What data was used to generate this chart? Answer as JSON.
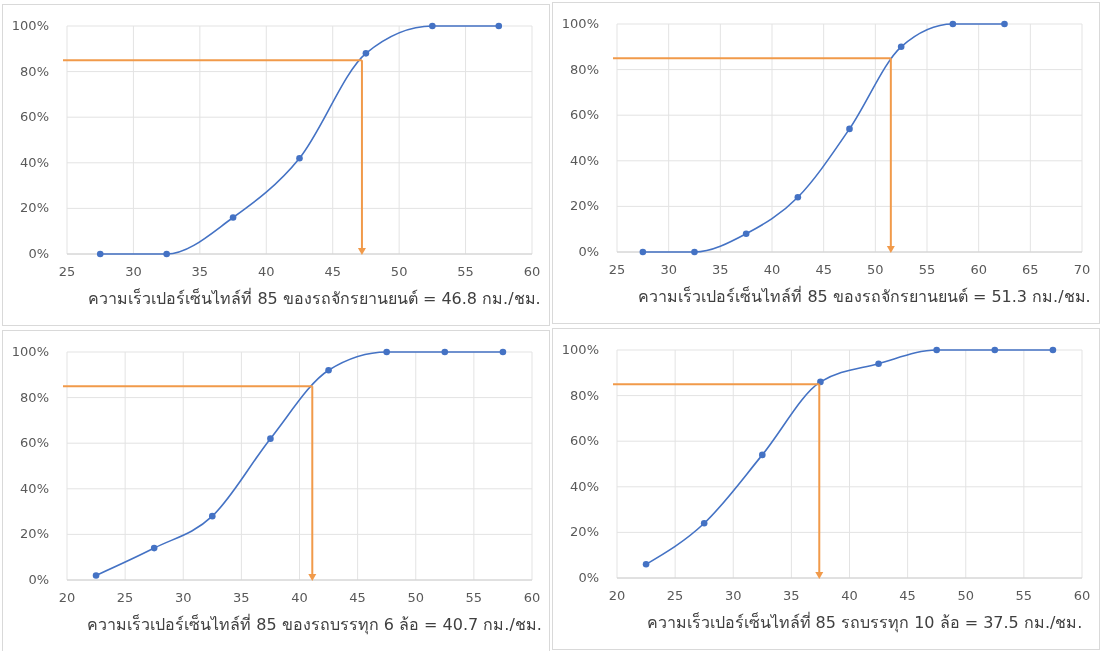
{
  "chart_data": [
    {
      "type": "line",
      "xlabel": "ความเร็วเปอร์เซ็นไทล์ที่ 85 ของรถจักรยานยนต์ = 46.8 กม./ชม.",
      "x": [
        27.5,
        32.5,
        37.5,
        42.5,
        47.5,
        52.5,
        57.5
      ],
      "values": [
        0,
        0,
        16,
        42,
        88,
        100,
        100
      ],
      "color": "#4472c4",
      "marker": "circle",
      "grid": true,
      "xlim": [
        25,
        60
      ],
      "xticks": [
        25,
        30,
        35,
        40,
        45,
        50,
        55,
        60
      ],
      "ylim": [
        0,
        100
      ],
      "yticks": [
        {
          "value": 0,
          "label": "0%"
        },
        {
          "value": 20,
          "label": "20%"
        },
        {
          "value": 40,
          "label": "40%"
        },
        {
          "value": 60,
          "label": "60%"
        },
        {
          "value": 80,
          "label": "80%"
        },
        {
          "value": 100,
          "label": "100%"
        }
      ],
      "ref_lines": [
        {
          "axis": "y",
          "value": 85,
          "color": "#f19a4a"
        },
        {
          "axis": "x",
          "value": 47.2,
          "color": "#f19a4a"
        }
      ]
    },
    {
      "type": "line",
      "xlabel": "ความเร็วเปอร์เซ็นไทล์ที่ 85 ของรถจักรยานยนต์ = 51.3 กม./ชม.",
      "x": [
        27.5,
        32.5,
        37.5,
        42.5,
        47.5,
        52.5,
        57.5,
        62.5
      ],
      "values": [
        0,
        0,
        8,
        24,
        54,
        90,
        100,
        100
      ],
      "color": "#4472c4",
      "marker": "circle",
      "grid": true,
      "xlim": [
        25,
        70
      ],
      "xticks": [
        25,
        30,
        35,
        40,
        45,
        50,
        55,
        60,
        65,
        70
      ],
      "ylim": [
        0,
        100
      ],
      "yticks": [
        {
          "value": 0,
          "label": "0%"
        },
        {
          "value": 20,
          "label": "20%"
        },
        {
          "value": 40,
          "label": "40%"
        },
        {
          "value": 60,
          "label": "60%"
        },
        {
          "value": 80,
          "label": "80%"
        },
        {
          "value": 100,
          "label": "100%"
        }
      ],
      "ref_lines": [
        {
          "axis": "y",
          "value": 85,
          "color": "#f19a4a"
        },
        {
          "axis": "x",
          "value": 51.5,
          "color": "#f19a4a"
        }
      ]
    },
    {
      "type": "line",
      "xlabel": "ความเร็วเปอร์เซ็นไทล์ที่ 85 ของรถบรรทุก 6 ล้อ = 40.7 กม./ชม.",
      "x": [
        22.5,
        27.5,
        32.5,
        37.5,
        42.5,
        47.5,
        52.5,
        57.5
      ],
      "values": [
        2,
        14,
        28,
        62,
        92,
        100,
        100,
        100
      ],
      "color": "#4472c4",
      "marker": "circle",
      "grid": true,
      "xlim": [
        20,
        60
      ],
      "xticks": [
        20,
        25,
        30,
        35,
        40,
        45,
        50,
        55,
        60
      ],
      "ylim": [
        0,
        100
      ],
      "yticks": [
        {
          "value": 0,
          "label": "0%"
        },
        {
          "value": 20,
          "label": "20%"
        },
        {
          "value": 40,
          "label": "40%"
        },
        {
          "value": 60,
          "label": "60%"
        },
        {
          "value": 80,
          "label": "80%"
        },
        {
          "value": 100,
          "label": "100%"
        }
      ],
      "ref_lines": [
        {
          "axis": "y",
          "value": 85,
          "color": "#f19a4a"
        },
        {
          "axis": "x",
          "value": 41.1,
          "color": "#f19a4a"
        }
      ]
    },
    {
      "type": "line",
      "xlabel": "ความเร็วเปอร์เซ็นไทล์ที่ 85 รถบรรทุก 10 ล้อ = 37.5 กม./ชม.",
      "x": [
        22.5,
        27.5,
        32.5,
        37.5,
        42.5,
        47.5,
        52.5,
        57.5
      ],
      "values": [
        6,
        24,
        54,
        86,
        94,
        100,
        100,
        100
      ],
      "color": "#4472c4",
      "marker": "circle",
      "grid": true,
      "xlim": [
        20,
        60
      ],
      "xticks": [
        20,
        25,
        30,
        35,
        40,
        45,
        50,
        55,
        60
      ],
      "ylim": [
        0,
        100
      ],
      "yticks": [
        {
          "value": 0,
          "label": "0%"
        },
        {
          "value": 20,
          "label": "20%"
        },
        {
          "value": 40,
          "label": "40%"
        },
        {
          "value": 60,
          "label": "60%"
        },
        {
          "value": 80,
          "label": "80%"
        },
        {
          "value": 100,
          "label": "100%"
        }
      ],
      "ref_lines": [
        {
          "axis": "y",
          "value": 85,
          "color": "#f19a4a"
        },
        {
          "axis": "x",
          "value": 37.4,
          "color": "#f19a4a"
        }
      ]
    }
  ]
}
